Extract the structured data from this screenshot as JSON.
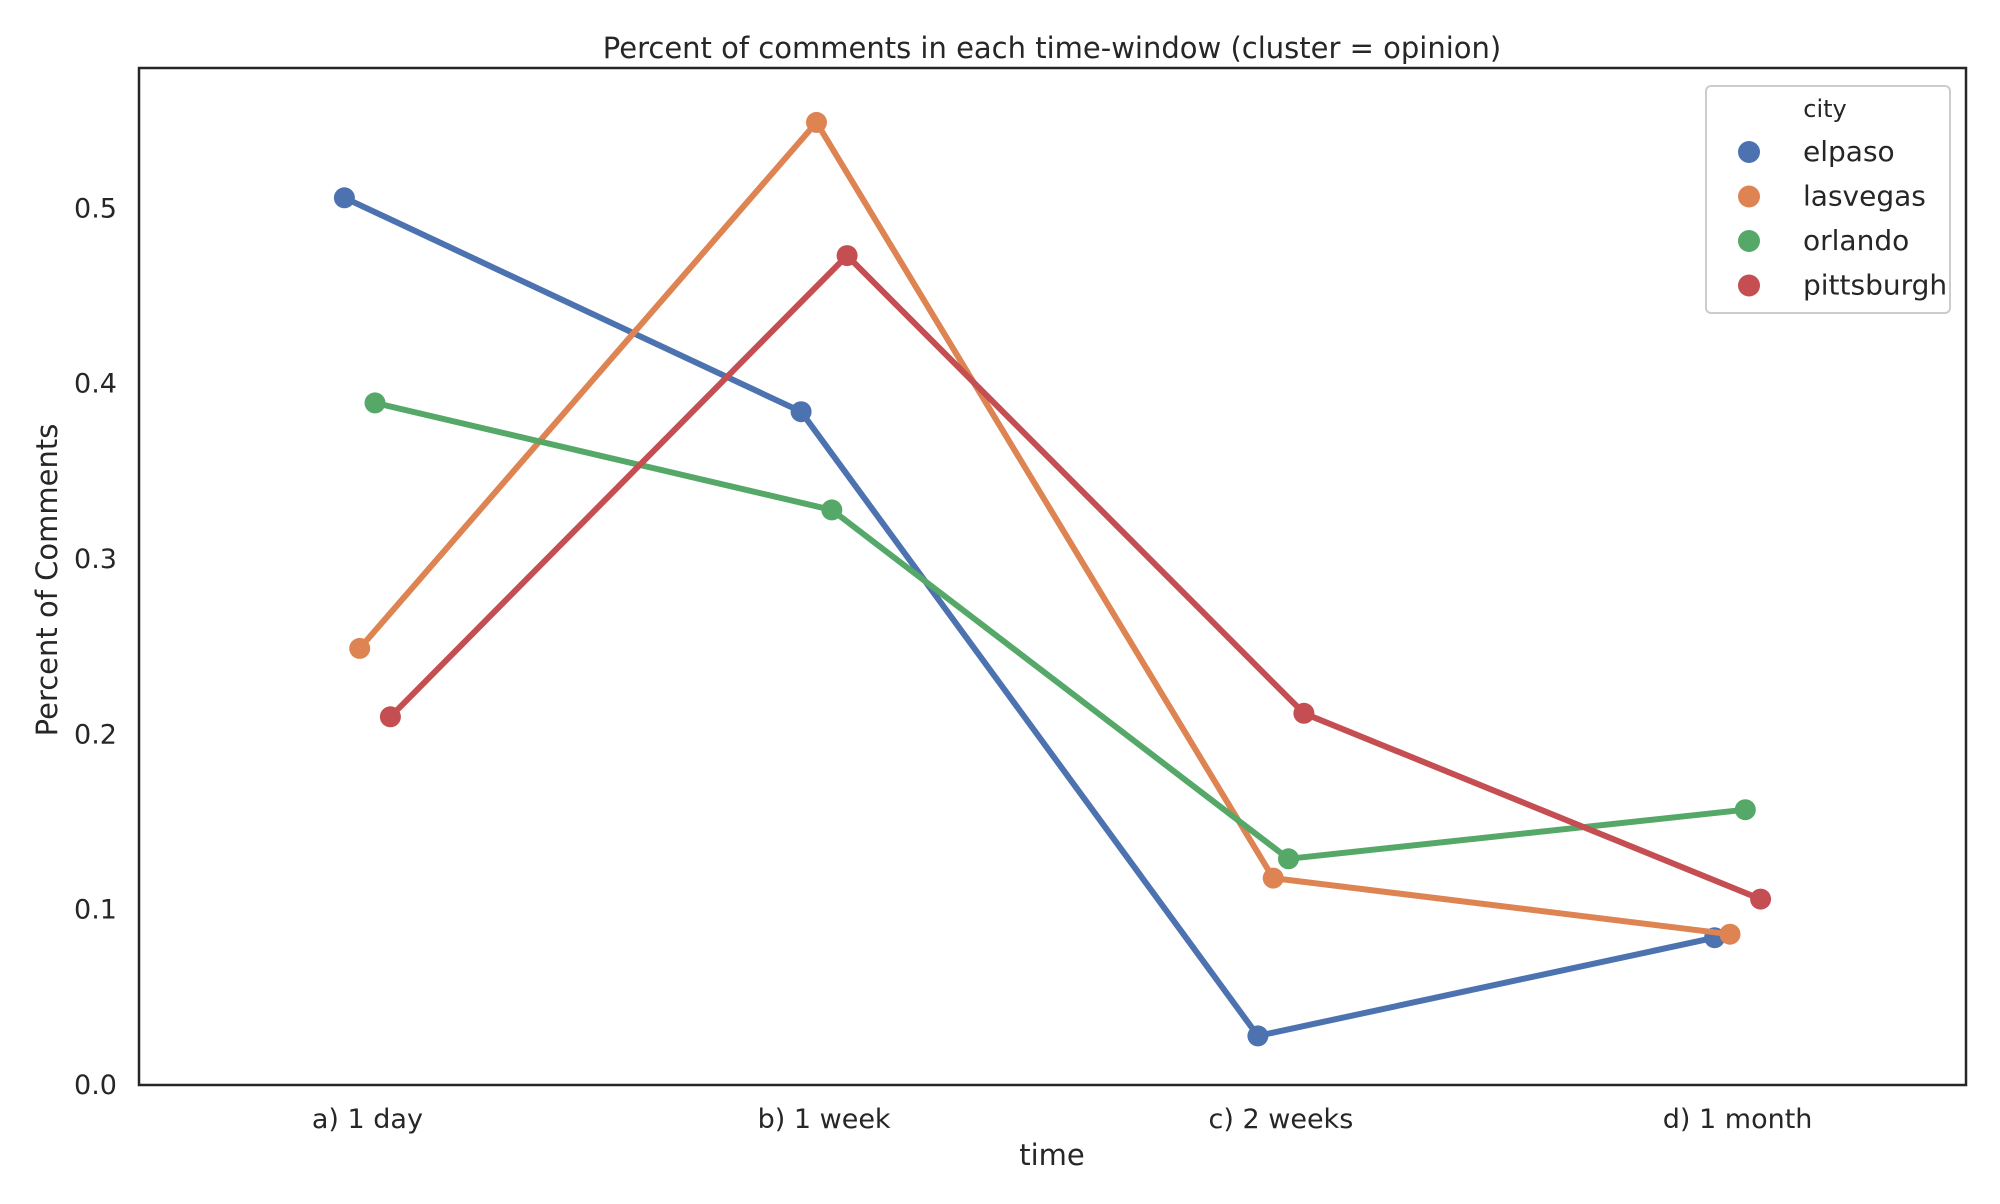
{
  "chart_data": {
    "type": "line",
    "title": "Percent of comments in each time-window (cluster = opinion)",
    "xlabel": "time",
    "ylabel": "Percent of Comments",
    "categories": [
      "a) 1 day",
      "b) 1 week",
      "c) 2 weeks",
      "d) 1 month"
    ],
    "ylim": [
      0.0,
      0.58
    ],
    "yticks": [
      "0.0",
      "0.1",
      "0.2",
      "0.3",
      "0.4",
      "0.5"
    ],
    "grid": false,
    "legend": {
      "title": "city",
      "placement": "top-right"
    },
    "series": [
      {
        "name": "elpaso",
        "color": "#4c72b0",
        "values": [
          0.506,
          0.384,
          0.028,
          0.084
        ]
      },
      {
        "name": "lasvegas",
        "color": "#dd8452",
        "values": [
          0.249,
          0.549,
          0.118,
          0.086
        ]
      },
      {
        "name": "orlando",
        "color": "#55a868",
        "values": [
          0.389,
          0.328,
          0.129,
          0.157
        ]
      },
      {
        "name": "pittsburgh",
        "color": "#c44e52",
        "values": [
          0.21,
          0.473,
          0.212,
          0.106
        ]
      }
    ]
  }
}
